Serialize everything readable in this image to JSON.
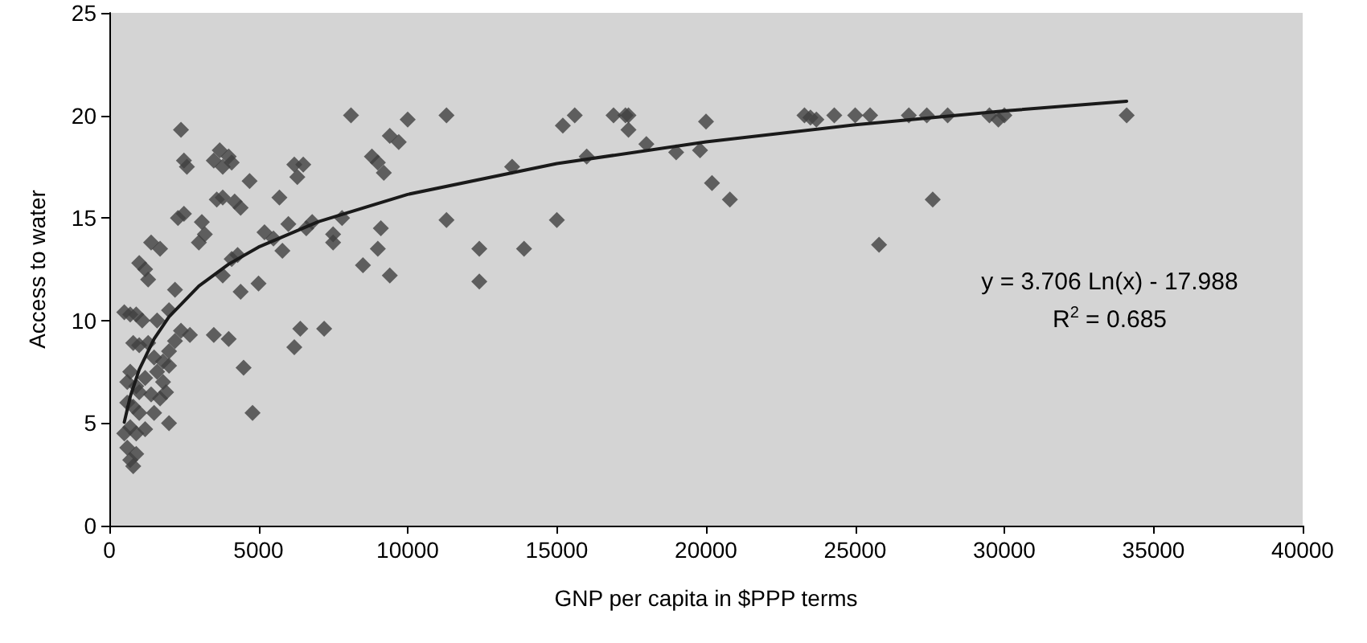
{
  "chart_data": {
    "type": "scatter",
    "xlabel": "GNP per capita in $PPP terms",
    "ylabel": "Access to water",
    "xlim": [
      0,
      40000
    ],
    "xticks": [
      0,
      5000,
      10000,
      15000,
      20000,
      25000,
      30000,
      35000,
      40000
    ],
    "ylim": [
      0,
      25
    ],
    "yticks": [
      0,
      5,
      10,
      15,
      20,
      25
    ],
    "grid": false,
    "marker": "diamond",
    "annotations": [
      "y = 3.706 Ln(x) - 17.988",
      "R$^{2}$ = 0.685"
    ],
    "series": [
      {
        "color": "#404040",
        "x": [
          500,
          700,
          900,
          800,
          1000,
          600,
          700,
          900,
          600,
          800,
          1000,
          500,
          700,
          900,
          1200,
          600,
          700,
          800,
          900,
          1000,
          1200,
          1400,
          1500,
          1300,
          1600,
          1700,
          1800,
          2000,
          1900,
          2000,
          1500,
          1100,
          1300,
          1200,
          1400,
          1700,
          1600,
          2000,
          2200,
          2400,
          2300,
          2400,
          2500,
          2600,
          2500,
          2700,
          2200,
          1000,
          2000,
          1800,
          3000,
          3100,
          3200,
          3500,
          3700,
          3800,
          4000,
          4100,
          3600,
          3800,
          4200,
          4400,
          3800,
          3500,
          4000,
          4100,
          4300,
          4500,
          4400,
          4700,
          4800,
          5000,
          5200,
          5500,
          5700,
          5800,
          6000,
          6200,
          6300,
          6500,
          6200,
          6400,
          6600,
          6800,
          7200,
          7500,
          7500,
          7800,
          8100,
          8500,
          8800,
          9000,
          9200,
          9100,
          9000,
          9400,
          9400,
          9700,
          10000,
          11300,
          11300,
          12400,
          12400,
          13500,
          13900,
          15000,
          15200,
          15600,
          16000,
          16900,
          17300,
          17400,
          17400,
          18000,
          19000,
          19800,
          20000,
          20200,
          20800,
          23300,
          23500,
          23700,
          24300,
          25000,
          25500,
          25800,
          26800,
          27400,
          27600,
          28100,
          29500,
          29800,
          30000,
          34100
        ],
        "values": [
          10.4,
          10.3,
          10.3,
          8.9,
          8.8,
          7,
          7.5,
          6.8,
          6,
          5.8,
          5.5,
          4.5,
          4.8,
          4.5,
          4.7,
          3.8,
          3.2,
          2.9,
          3.5,
          6.5,
          7.2,
          6.4,
          8.2,
          8.9,
          7.5,
          6.2,
          7,
          7.8,
          6.5,
          5,
          5.5,
          10,
          12,
          12.5,
          13.8,
          13.5,
          10,
          10.5,
          11.5,
          9.5,
          15,
          19.3,
          17.8,
          17.5,
          15.2,
          9.3,
          9,
          12.8,
          8.5,
          8,
          13.8,
          14.8,
          14.2,
          17.8,
          18.3,
          17.5,
          18,
          17.7,
          15.9,
          16,
          15.8,
          15.5,
          12.2,
          9.3,
          9.1,
          13,
          13.2,
          7.7,
          11.4,
          16.8,
          5.5,
          11.8,
          14.3,
          14,
          16,
          13.4,
          14.7,
          17.6,
          17,
          17.6,
          8.7,
          9.6,
          14.5,
          14.8,
          9.6,
          14.2,
          13.8,
          15,
          20,
          12.7,
          18,
          17.7,
          17.2,
          14.5,
          13.5,
          12.2,
          19,
          18.7,
          19.8,
          20,
          14.9,
          13.5,
          11.9,
          17.5,
          13.5,
          14.9,
          19.5,
          20,
          18,
          20,
          20,
          19.3,
          20,
          18.6,
          18.2,
          18.3,
          19.7,
          16.7,
          15.9,
          20,
          19.9,
          19.8,
          20,
          20,
          20,
          13.7,
          20,
          20,
          15.9,
          20,
          20,
          19.8,
          20,
          20
        ]
      },
      {
        "type": "line",
        "color": "#1a1a1a",
        "marker": "none",
        "line_style": "solid",
        "x": [
          500,
          700,
          1000,
          1500,
          2000,
          3000,
          4000,
          5000,
          7000,
          10000,
          15000,
          20000,
          25000,
          30000,
          34100
        ],
        "values": [
          5.04,
          6.29,
          7.61,
          9.11,
          10.18,
          11.68,
          12.75,
          13.58,
          14.82,
          16.15,
          17.65,
          18.71,
          19.54,
          20.22,
          20.69
        ]
      }
    ]
  }
}
